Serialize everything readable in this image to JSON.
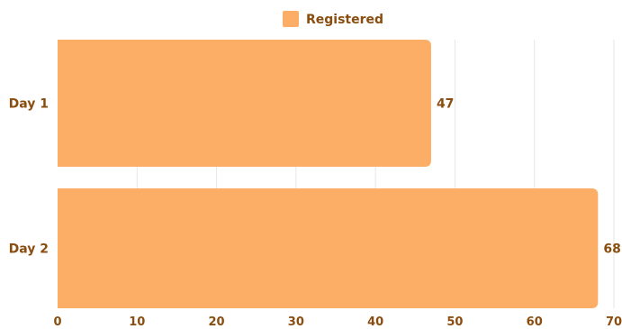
{
  "colors": {
    "bar": "#FDAE66",
    "text": "#8A4D10",
    "grid": "#E6E6E6",
    "background": "#FFFFFF"
  },
  "chart_data": {
    "type": "bar",
    "orientation": "horizontal",
    "categories": [
      "Day 1",
      "Day 2"
    ],
    "series": [
      {
        "name": "Registered",
        "values": [
          47,
          68
        ]
      }
    ],
    "xlim": [
      0,
      70
    ],
    "xticks": [
      0,
      10,
      20,
      30,
      40,
      50,
      60,
      70
    ],
    "grid": true,
    "legend_position": "top-center",
    "data_labels": true
  }
}
